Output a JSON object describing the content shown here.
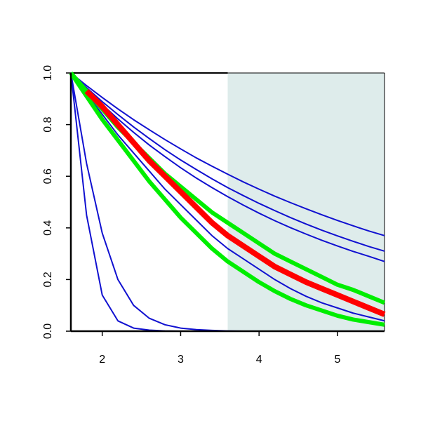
{
  "chart_data": {
    "type": "line",
    "x": [
      1.6,
      1.8,
      2.0,
      2.2,
      2.4,
      2.6,
      2.8,
      3.0,
      3.2,
      3.4,
      3.6,
      3.8,
      4.0,
      4.2,
      4.4,
      4.6,
      4.8,
      5.0,
      5.2,
      5.4,
      5.6
    ],
    "xlim": [
      1.6,
      5.6
    ],
    "ylim": [
      0,
      1
    ],
    "xticks": [
      2,
      3,
      4,
      5
    ],
    "yticks": [
      {
        "value": 0,
        "label": "0.0"
      },
      0.2,
      0.4,
      0.6,
      0.8,
      {
        "value": 1,
        "label": "1.0"
      }
    ],
    "shaded_region": {
      "x": [
        3.6,
        5.6
      ],
      "color": "#deeceb"
    },
    "series": [
      {
        "color": "#1010d0",
        "width": 2,
        "values": [
          1,
          0.951,
          0.905,
          0.861,
          0.819,
          0.78,
          0.742,
          0.706,
          0.671,
          0.639,
          0.608,
          0.578,
          0.55,
          0.523,
          0.498,
          0.474,
          0.451,
          0.429,
          0.408,
          0.388,
          0.37
        ]
      },
      {
        "color": "#1010d0",
        "width": 2,
        "values": [
          1,
          0.943,
          0.889,
          0.839,
          0.791,
          0.746,
          0.703,
          0.663,
          0.626,
          0.59,
          0.556,
          0.525,
          0.495,
          0.467,
          0.44,
          0.415,
          0.391,
          0.369,
          0.348,
          0.328,
          0.31
        ]
      },
      {
        "color": "#1010d0",
        "width": 2,
        "values": [
          1,
          0.937,
          0.878,
          0.822,
          0.77,
          0.721,
          0.676,
          0.633,
          0.593,
          0.556,
          0.521,
          0.488,
          0.457,
          0.428,
          0.401,
          0.376,
          0.352,
          0.33,
          0.309,
          0.29,
          0.27
        ]
      },
      {
        "color": "#1010d0",
        "width": 2,
        "values": [
          1,
          0.45,
          0.14,
          0.04,
          0.012,
          0.004,
          0.001,
          0,
          0,
          0,
          0,
          0,
          0,
          0,
          0,
          0,
          0,
          0,
          0,
          0,
          0
        ]
      },
      {
        "color": "#1010d0",
        "width": 2,
        "values": [
          1,
          0.65,
          0.38,
          0.2,
          0.1,
          0.05,
          0.025,
          0.012,
          0.006,
          0.003,
          0.001,
          0,
          0,
          0,
          0,
          0,
          0,
          0,
          0,
          0,
          0
        ]
      },
      {
        "color": "#1010d0",
        "width": 2,
        "values": [
          1,
          0.92,
          0.84,
          0.76,
          0.69,
          0.62,
          0.55,
          0.49,
          0.43,
          0.37,
          0.32,
          0.28,
          0.24,
          0.2,
          0.165,
          0.135,
          0.11,
          0.09,
          0.07,
          0.055,
          0.04
        ]
      },
      {
        "color": "#00ee00",
        "width": 6,
        "values": [
          1,
          0.93,
          0.86,
          0.79,
          0.73,
          0.67,
          0.61,
          0.56,
          0.51,
          0.46,
          0.42,
          0.38,
          0.34,
          0.3,
          0.27,
          0.24,
          0.21,
          0.18,
          0.16,
          0.135,
          0.11
        ]
      },
      {
        "color": "#00ee00",
        "width": 6,
        "values": [
          1,
          0.91,
          0.82,
          0.74,
          0.66,
          0.58,
          0.51,
          0.44,
          0.38,
          0.32,
          0.27,
          0.23,
          0.19,
          0.155,
          0.125,
          0.1,
          0.08,
          0.06,
          0.045,
          0.035,
          0.025
        ]
      },
      {
        "color": "#ff0000",
        "width": 8,
        "values": [
          null,
          0.93,
          0.87,
          0.8,
          0.73,
          0.66,
          0.6,
          0.54,
          0.48,
          0.42,
          0.37,
          0.33,
          0.29,
          0.25,
          0.22,
          0.19,
          0.165,
          0.14,
          0.115,
          0.09,
          0.065
        ]
      }
    ]
  }
}
